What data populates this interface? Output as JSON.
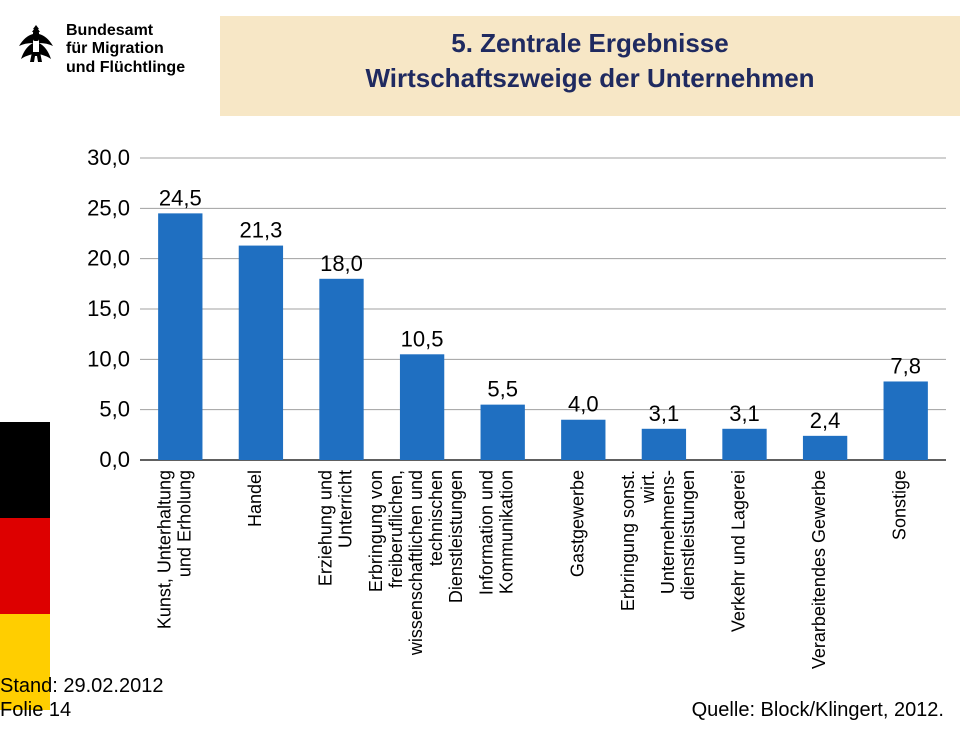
{
  "agency": {
    "line1": "Bundesamt",
    "line2": "für Migration",
    "line3": "und Flüchtlinge"
  },
  "title": {
    "line1": "5. Zentrale Ergebnisse",
    "line2": "Wirtschaftszweige der Unternehmen"
  },
  "chart": {
    "type": "bar",
    "bar_color": "#1f6fc1",
    "grid_color": "#a0a0a0",
    "axis_color": "#000000",
    "background_color": "#ffffff",
    "title_band_color": "#f7e7c6",
    "title_text_color": "#1f2a60",
    "ylim": [
      0,
      30
    ],
    "ytick_step": 5,
    "y_ticks": [
      "0,0",
      "5,0",
      "10,0",
      "15,0",
      "20,0",
      "25,0",
      "30,0"
    ],
    "bar_width": 0.55,
    "label_fontsize": 22,
    "xlabel_fontsize": 18,
    "categories": [
      "Kunst, Unterhaltung und Erholung",
      "Handel",
      "Erziehung und Unterricht",
      "Erbringung von freiberuflichen, wissenschaftlichen und technischen Dienstleistungen",
      "Information und Kommunikation",
      "Gastgewerbe",
      "Erbringung sonst. wirt. Unternehmens-dienstleistungen",
      "Verkehr und Lagerei",
      "Verarbeitendes Gewerbe",
      "Sonstige"
    ],
    "values": [
      24.5,
      21.3,
      18.0,
      10.5,
      5.5,
      4.0,
      3.1,
      3.1,
      2.4,
      7.8
    ],
    "value_labels": [
      "24,5",
      "21,3",
      "18,0",
      "10,5",
      "5,5",
      "4,0",
      "3,1",
      "3,1",
      "2,4",
      "7,8"
    ]
  },
  "flag_colors": {
    "black": "#000000",
    "red": "#dd0000",
    "gold": "#ffce00"
  },
  "footer": {
    "stand": "Stand: 29.02.2012",
    "folie": "Folie 14",
    "source": "Quelle: Block/Klingert, 2012."
  }
}
